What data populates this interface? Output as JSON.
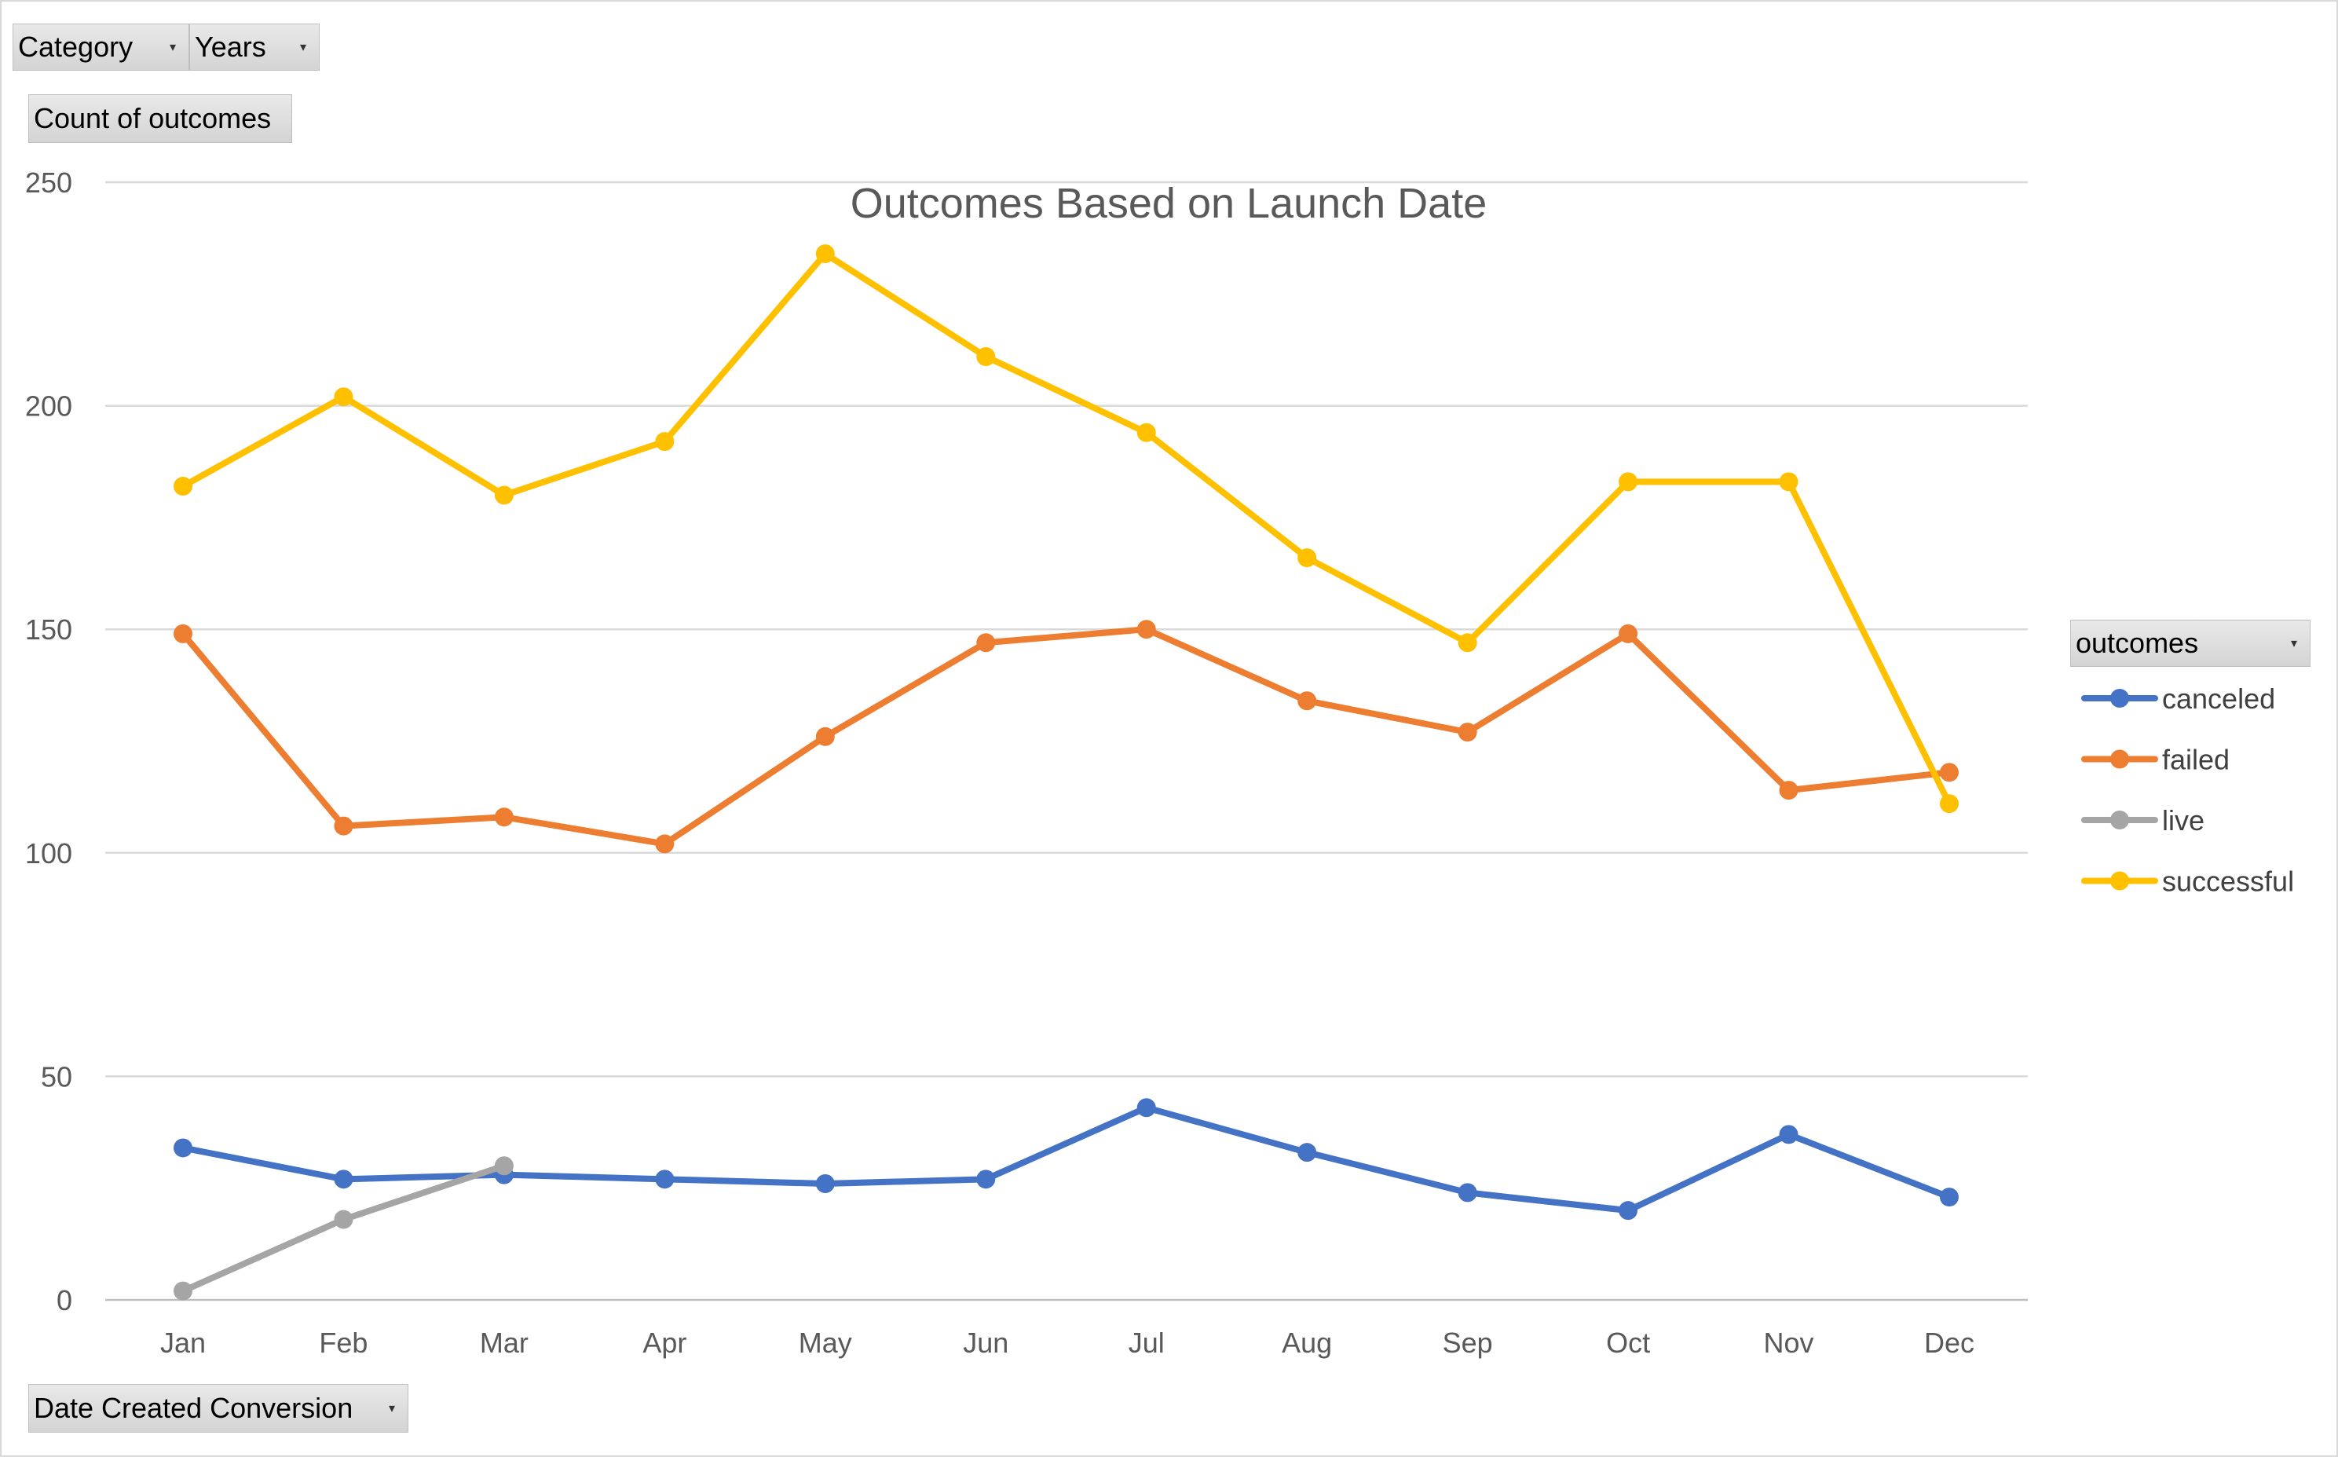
{
  "filters": {
    "category_label": "Category",
    "years_label": "Years",
    "values_label": "Count of outcomes",
    "axis_field_label": "Date Created Conversion",
    "legend_field_label": "outcomes"
  },
  "icons": {
    "dropdown": "dropdown-arrow-icon"
  },
  "chart_data": {
    "type": "line",
    "title": "Outcomes Based on Launch Date",
    "xlabel": "",
    "ylabel": "",
    "categories": [
      "Jan",
      "Feb",
      "Mar",
      "Apr",
      "May",
      "Jun",
      "Jul",
      "Aug",
      "Sep",
      "Oct",
      "Nov",
      "Dec"
    ],
    "ylim": [
      0,
      250
    ],
    "yticks": [
      0,
      50,
      100,
      150,
      200,
      250
    ],
    "grid": true,
    "legend_position": "right",
    "series": [
      {
        "name": "canceled",
        "color": "#4472C4",
        "values": [
          34,
          27,
          28,
          27,
          26,
          27,
          43,
          33,
          24,
          20,
          37,
          23
        ]
      },
      {
        "name": "failed",
        "color": "#ED7D31",
        "values": [
          149,
          106,
          108,
          102,
          126,
          147,
          150,
          134,
          127,
          149,
          114,
          118
        ]
      },
      {
        "name": "live",
        "color": "#A5A5A5",
        "values": [
          2,
          18,
          30,
          null,
          null,
          null,
          null,
          null,
          null,
          null,
          null,
          null
        ]
      },
      {
        "name": "successful",
        "color": "#FFC000",
        "values": [
          182,
          202,
          180,
          192,
          234,
          211,
          194,
          166,
          147,
          183,
          183,
          111
        ]
      }
    ]
  }
}
